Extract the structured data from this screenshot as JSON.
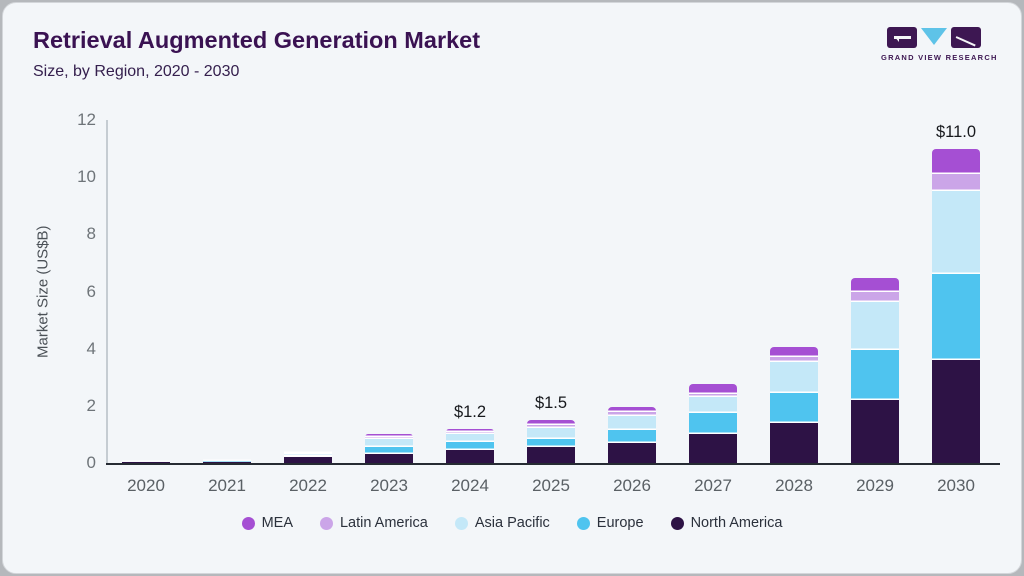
{
  "header": {
    "title": "Retrieval Augmented Generation Market",
    "subtitle": "Size, by Region, 2020 - 2030"
  },
  "logo": {
    "name": "grand-view-research-logo",
    "text": "GRAND VIEW RESEARCH",
    "block_color": "#3d1752",
    "triangle_color": "#5ec3e8"
  },
  "chart_data": {
    "type": "bar",
    "stacked": true,
    "title": "Retrieval Augmented Generation Market",
    "subtitle": "Size, by Region, 2020 - 2030",
    "ylabel": "Market Size (US$B)",
    "xlabel": "",
    "ylim": [
      0,
      12
    ],
    "yticks": [
      0,
      2,
      4,
      6,
      8,
      10,
      12
    ],
    "grid": false,
    "legend_position": "bottom",
    "categories": [
      "2020",
      "2021",
      "2022",
      "2023",
      "2024",
      "2025",
      "2026",
      "2027",
      "2028",
      "2029",
      "2030"
    ],
    "stack_order_note": "series listed bottom-to-top of each stacked bar; values in US$ billions",
    "series": [
      {
        "name": "North America",
        "color": "#2d1245",
        "values": [
          0.02,
          0.05,
          0.2,
          0.3,
          0.45,
          0.55,
          0.7,
          1.0,
          1.4,
          2.2,
          3.6
        ]
      },
      {
        "name": "Europe",
        "color": "#4fc4ef",
        "values": [
          0.01,
          0.01,
          0.06,
          0.25,
          0.3,
          0.3,
          0.45,
          0.75,
          1.05,
          1.75,
          3.0
        ]
      },
      {
        "name": "Asia Pacific",
        "color": "#c4e8f8",
        "values": [
          0.01,
          0.02,
          0.07,
          0.3,
          0.25,
          0.37,
          0.5,
          0.55,
          1.1,
          1.7,
          2.9
        ]
      },
      {
        "name": "Latin America",
        "color": "#cba5e8",
        "values": [
          0.0,
          0.0,
          0.01,
          0.05,
          0.08,
          0.1,
          0.13,
          0.12,
          0.16,
          0.32,
          0.6
        ]
      },
      {
        "name": "MEA",
        "color": "#a54fd3",
        "values": [
          0.0,
          0.0,
          0.01,
          0.1,
          0.12,
          0.18,
          0.18,
          0.33,
          0.34,
          0.5,
          0.9
        ]
      }
    ],
    "bar_totals": [
      0.04,
      0.08,
      0.35,
      1.0,
      1.2,
      1.5,
      1.96,
      2.75,
      4.05,
      6.47,
      11.0
    ],
    "bar_labels": [
      "",
      "",
      "",
      "",
      "$1.2",
      "$1.5",
      "",
      "",
      "",
      "",
      "$11.0"
    ]
  },
  "legend": {
    "items": [
      {
        "label": "MEA",
        "color": "#a54fd3"
      },
      {
        "label": "Latin America",
        "color": "#cba5e8"
      },
      {
        "label": "Asia Pacific",
        "color": "#c4e8f8"
      },
      {
        "label": "Europe",
        "color": "#4fc4ef"
      },
      {
        "label": "North America",
        "color": "#2d1245"
      }
    ]
  }
}
